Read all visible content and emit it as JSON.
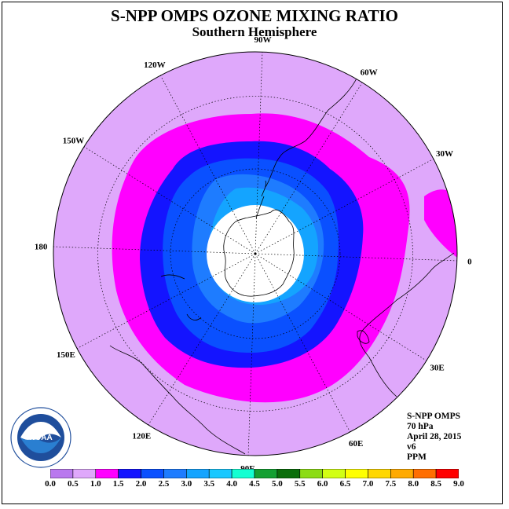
{
  "title": "S-NPP OMPS OZONE MIXING RATIO",
  "subtitle": "Southern Hemisphere",
  "longitude_labels": [
    {
      "text": "90W",
      "lon": -90
    },
    {
      "text": "60W",
      "lon": -60
    },
    {
      "text": "30W",
      "lon": -30
    },
    {
      "text": "0",
      "lon": 0
    },
    {
      "text": "30E",
      "lon": 30
    },
    {
      "text": "60E",
      "lon": 60
    },
    {
      "text": "90E",
      "lon": 90
    },
    {
      "text": "120E",
      "lon": 120
    },
    {
      "text": "150E",
      "lon": 150
    },
    {
      "text": "180",
      "lon": 180
    },
    {
      "text": "150W",
      "lon": -150
    },
    {
      "text": "120W",
      "lon": -120
    }
  ],
  "info": {
    "instrument": "S-NPP OMPS",
    "level": "70 hPa",
    "date": "April 28, 2015",
    "version": "v6",
    "units": "PPM"
  },
  "logo": {
    "text": "NOAA",
    "ring_text": "NATIONAL OCEANIC AND ATMOSPHERIC ADMINISTRATION • U.S. DEPARTMENT OF COMMERCE"
  },
  "colorbar": {
    "ticks": [
      "0.0",
      "0.5",
      "1.0",
      "1.5",
      "2.0",
      "2.5",
      "3.0",
      "3.5",
      "4.0",
      "4.5",
      "5.0",
      "5.5",
      "6.0",
      "6.5",
      "7.0",
      "7.5",
      "8.0",
      "8.5",
      "9.0"
    ],
    "colors": [
      "#b978ee",
      "#dfa8fb",
      "#ff00ff",
      "#1414ff",
      "#0a50ff",
      "#1e7cff",
      "#14a4ff",
      "#19c8ff",
      "#14ffd2",
      "#14a032",
      "#0a6e0a",
      "#8cdc14",
      "#d2ff14",
      "#ffff00",
      "#ffd700",
      "#ffaa00",
      "#ff6e00",
      "#ff0000",
      "#a0522d"
    ]
  },
  "map_colors": {
    "background": "#dfa8fb",
    "band_1_0": "#ff00ff",
    "band_1_5": "#1414ff",
    "band_2_0": "#0a50ff",
    "band_2_5": "#1e7cff",
    "band_3_0": "#14a4ff",
    "hole": "#ffffff"
  }
}
